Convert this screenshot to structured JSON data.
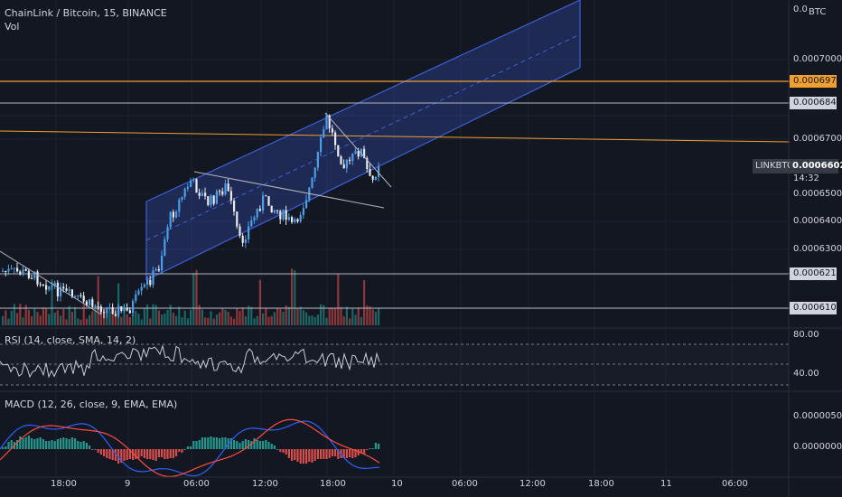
{
  "header": {
    "symbol_line": "ChainLink / Bitcoin, 15, BINANCE",
    "vol_label": "Vol"
  },
  "price_axis": {
    "currency": "BTC",
    "top_value": "0.0",
    "ticks": [
      "0.0007000",
      "0.0006700",
      "0.0006500",
      "0.0006400",
      "0.0006300"
    ],
    "level_labels": {
      "orange": "0.0006975",
      "level1": "0.0006841",
      "level2": "0.0006214",
      "level3": "0.0006100"
    },
    "current_ticker": "LINKBTC",
    "current_price": "0.0006602",
    "countdown": "14:32"
  },
  "rsi": {
    "label": "RSI (14, close, SMA, 14, 2)",
    "ticks": [
      "80.00",
      "40.00"
    ]
  },
  "macd": {
    "label": "MACD (12, 26, close, 9, EMA, EMA)",
    "ticks": [
      "0.0000050",
      "0.0000000"
    ]
  },
  "time_axis": {
    "labels": [
      "18:00",
      "9",
      "06:00",
      "12:00",
      "18:00",
      "10",
      "06:00",
      "12:00",
      "18:00",
      "11",
      "06:00"
    ]
  },
  "colors": {
    "background": "#131722",
    "up": "#26a69a",
    "down": "#ef5350",
    "candle_up": "#4c9ee8",
    "candle_down": "#e8eaf0",
    "channel": "#3d5fd6",
    "orange_line": "#f0a030",
    "gray_line": "#b2b5be",
    "rsi_line": "#c9cdd6",
    "macd_line": "#2962ff",
    "signal_line": "#ff4c3b"
  }
}
